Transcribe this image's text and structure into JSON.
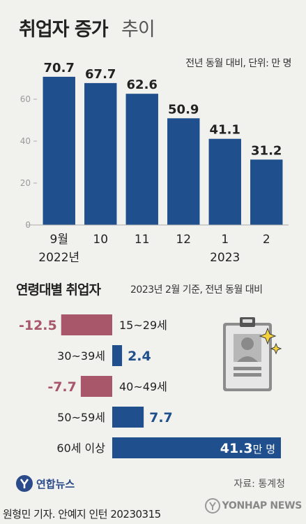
{
  "header": {
    "title_bold": "취업자 증가",
    "title_light": "추이",
    "unit_note": "전년 동월 대비, 단위: 만 명"
  },
  "age_section": {
    "title": "연령대별 취업자",
    "note": "2023년 2월 기준, 전년 동월 대비",
    "unit_suffix": "만 명"
  },
  "footer": {
    "logo_text": "연합뉴스",
    "source": "자료: 통계청",
    "credit": "원형민 기자. 안예지 인턴  20230315",
    "watermark": "YONHAP NEWS"
  },
  "colors": {
    "bar_blue": "#1f4f8c",
    "value_blue": "#1f4f8c",
    "negative": "#a8566a",
    "background": "#f1f1ee",
    "axis": "#aaaaaa"
  },
  "chart_data": [
    {
      "type": "bar",
      "categories": [
        "9월",
        "10",
        "11",
        "12",
        "1",
        "2"
      ],
      "year_labels": [
        "2022년",
        "",
        "",
        "",
        "2023",
        ""
      ],
      "values": [
        70.7,
        67.7,
        62.6,
        50.9,
        41.1,
        31.2
      ],
      "value_labels": [
        "70.7",
        "67.7",
        "62.6",
        "50.9",
        "41.1",
        "31.2"
      ],
      "ylim": [
        0,
        80
      ],
      "yticks": [
        0,
        20,
        40,
        60
      ],
      "ytick_labels": [
        "0",
        "20",
        "40",
        "60"
      ]
    },
    {
      "type": "bar",
      "orientation": "horizontal",
      "categories": [
        "15~29세",
        "30~39세",
        "40~49세",
        "50~59세",
        "60세 이상"
      ],
      "values": [
        -12.5,
        2.4,
        -7.7,
        7.7,
        41.3
      ],
      "value_labels": [
        "-12.5",
        "2.4",
        "-7.7",
        "7.7",
        "41.3"
      ]
    }
  ]
}
